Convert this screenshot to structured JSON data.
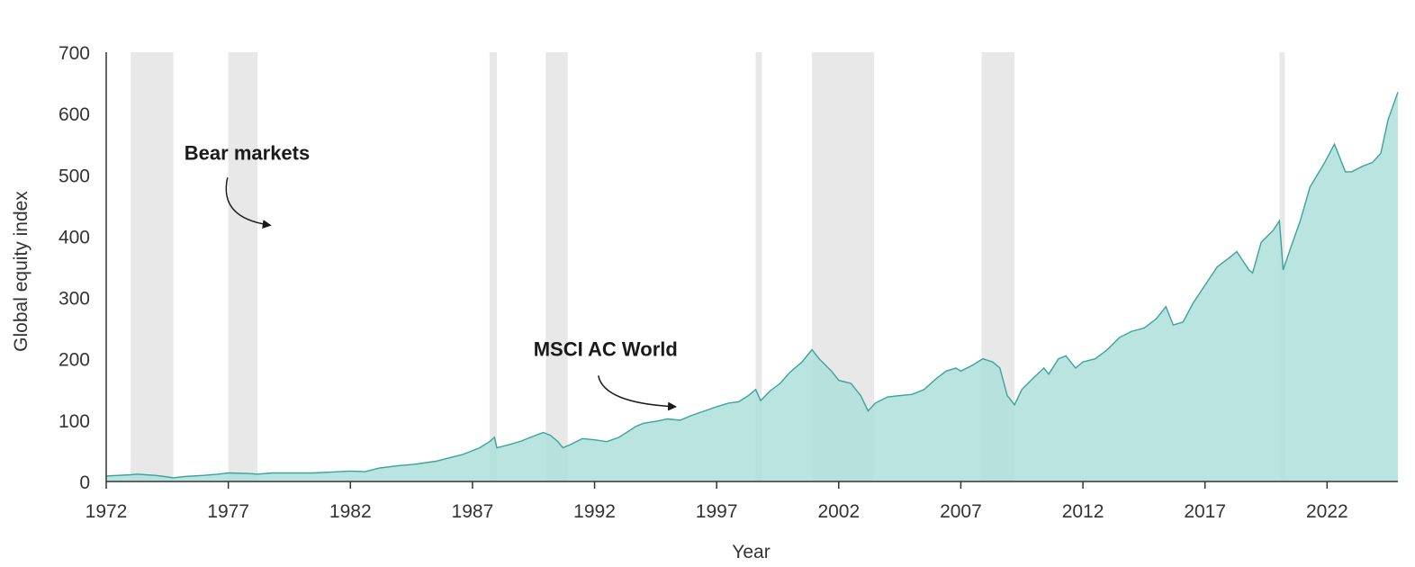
{
  "chart_data": {
    "type": "area",
    "title": "",
    "xlabel": "Year",
    "ylabel": "Global equity index",
    "xlim": [
      1972,
      2024.9
    ],
    "ylim": [
      0,
      700
    ],
    "x_ticks": [
      1972,
      1977,
      1982,
      1987,
      1992,
      1997,
      2002,
      2007,
      2012,
      2017,
      2022
    ],
    "y_ticks": [
      0,
      100,
      200,
      300,
      400,
      500,
      600,
      700
    ],
    "grid": false,
    "legend": "none",
    "colors": {
      "area_fill": "#aedfda",
      "area_line": "#3aa39b",
      "bear_band": "#e8e8e8",
      "axis": "#333333"
    },
    "series": [
      {
        "name": "MSCI AC World",
        "x": [
          1972.0,
          1973.0,
          1973.3,
          1973.6,
          1974.0,
          1974.4,
          1974.75,
          1975.2,
          1976.0,
          1976.6,
          1977.0,
          1977.8,
          1978.2,
          1978.8,
          1979.5,
          1980.5,
          1981.0,
          1982.0,
          1982.6,
          1983.2,
          1984.0,
          1984.6,
          1985.5,
          1986.0,
          1986.6,
          1987.3,
          1987.7,
          1987.9,
          1988.0,
          1988.5,
          1989.0,
          1989.5,
          1989.9,
          1990.2,
          1990.5,
          1990.7,
          1991.0,
          1991.5,
          1992.0,
          1992.5,
          1993.0,
          1993.7,
          1994.0,
          1994.5,
          1995.0,
          1995.5,
          1996.0,
          1996.5,
          1997.0,
          1997.5,
          1997.9,
          1998.3,
          1998.6,
          1998.8,
          1999.2,
          1999.6,
          2000.0,
          2000.5,
          2000.9,
          2001.2,
          2001.7,
          2002.0,
          2002.5,
          2002.9,
          2003.2,
          2003.5,
          2004.0,
          2004.5,
          2005.0,
          2005.5,
          2006.0,
          2006.4,
          2006.8,
          2007.0,
          2007.5,
          2007.9,
          2008.3,
          2008.6,
          2008.9,
          2009.2,
          2009.5,
          2010.0,
          2010.4,
          2010.6,
          2011.0,
          2011.3,
          2011.7,
          2012.0,
          2012.5,
          2013.0,
          2013.5,
          2014.0,
          2014.5,
          2015.0,
          2015.4,
          2015.7,
          2016.1,
          2016.5,
          2017.0,
          2017.5,
          2018.0,
          2018.3,
          2018.8,
          2018.95,
          2019.3,
          2019.8,
          2020.05,
          2020.2,
          2020.5,
          2020.9,
          2021.3,
          2021.9,
          2022.3,
          2022.75,
          2023.0,
          2023.5,
          2023.85,
          2024.2,
          2024.5,
          2024.9
        ],
        "values": [
          9,
          11,
          12,
          11,
          10,
          8,
          6,
          8,
          10,
          12,
          14,
          13,
          12,
          14,
          14,
          14,
          15,
          17,
          16,
          22,
          26,
          28,
          33,
          38,
          44,
          55,
          65,
          72,
          55,
          60,
          66,
          74,
          80,
          75,
          65,
          55,
          60,
          70,
          68,
          65,
          72,
          90,
          95,
          98,
          102,
          100,
          108,
          115,
          122,
          128,
          130,
          140,
          150,
          132,
          148,
          160,
          178,
          195,
          215,
          200,
          180,
          165,
          160,
          140,
          115,
          128,
          138,
          140,
          142,
          150,
          168,
          180,
          185,
          180,
          190,
          200,
          195,
          185,
          140,
          125,
          150,
          170,
          185,
          175,
          200,
          205,
          185,
          195,
          200,
          215,
          235,
          245,
          250,
          265,
          285,
          255,
          260,
          290,
          320,
          350,
          365,
          375,
          345,
          340,
          390,
          410,
          425,
          345,
          380,
          425,
          480,
          520,
          550,
          505,
          505,
          515,
          520,
          535,
          590,
          635
        ]
      }
    ],
    "bear_markets": [
      [
        1973.0,
        1974.75
      ],
      [
        1977.0,
        1978.2
      ],
      [
        1987.7,
        1988.0
      ],
      [
        1990.0,
        1990.9
      ],
      [
        1998.6,
        1998.85
      ],
      [
        2000.9,
        2003.45
      ],
      [
        2007.85,
        2009.2
      ],
      [
        2020.05,
        2020.2
      ]
    ],
    "annotations": [
      {
        "text": "Bear markets",
        "x": 1975.2,
        "y": 525,
        "arrow_to": [
          1978.7,
          418
        ]
      },
      {
        "text": "MSCI AC World",
        "x": 1989.5,
        "y": 205,
        "arrow_to": [
          1995.3,
          122
        ]
      }
    ]
  }
}
